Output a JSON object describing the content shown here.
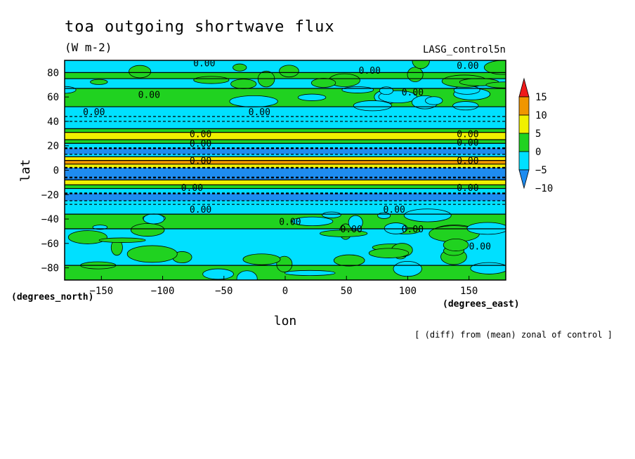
{
  "chart_data": {
    "type": "heatmap",
    "title": "toa outgoing shortwave flux",
    "subtitle": "(W m-2)",
    "dataset_label": "LASG_control5n",
    "xlabel": "lon",
    "ylabel": "lat",
    "x_unit_label": "(degrees_east)",
    "y_unit_label": "(degrees_north)",
    "footer": "[ (diff) from (mean) zonal of control ]",
    "xlim": [
      -180,
      180
    ],
    "ylim": [
      -90,
      90
    ],
    "x_ticks": [
      -150,
      -100,
      -50,
      0,
      50,
      100,
      150
    ],
    "y_ticks": [
      80,
      60,
      40,
      20,
      0,
      -20,
      -40,
      -60,
      -80
    ],
    "colorbar": {
      "levels": [
        -10,
        -5,
        0,
        5,
        10,
        15
      ],
      "labels": [
        "15",
        "10",
        "5",
        "0",
        "−5",
        "−10"
      ],
      "colors": [
        "#1e8cf0",
        "#00e0ff",
        "#20d220",
        "#f0f000",
        "#f09600",
        "#f01a1a"
      ]
    },
    "contour_label": "0.00",
    "lat_bands": [
      {
        "lat": [
          80,
          90
        ],
        "value": -3
      },
      {
        "lat": [
          75,
          80
        ],
        "value": 0
      },
      {
        "lat": [
          67,
          75
        ],
        "value": -2
      },
      {
        "lat": [
          52,
          67
        ],
        "value": 1
      },
      {
        "lat": [
          44,
          52
        ],
        "value": -2
      },
      {
        "lat": [
          40,
          44
        ],
        "value": -1
      },
      {
        "lat": [
          34,
          40
        ],
        "value": -3
      },
      {
        "lat": [
          31,
          34
        ],
        "value": 2
      },
      {
        "lat": [
          25,
          31
        ],
        "value": 7
      },
      {
        "lat": [
          22,
          25
        ],
        "value": 3
      },
      {
        "lat": [
          18,
          22
        ],
        "value": -3
      },
      {
        "lat": [
          13,
          18
        ],
        "value": -7
      },
      {
        "lat": [
          11,
          13
        ],
        "value": -3
      },
      {
        "lat": [
          8,
          11
        ],
        "value": 6
      },
      {
        "lat": [
          5,
          8
        ],
        "value": 12
      },
      {
        "lat": [
          2,
          5
        ],
        "value": 7
      },
      {
        "lat": [
          -6,
          2
        ],
        "value": -12
      },
      {
        "lat": [
          -8,
          -6
        ],
        "value": -6
      },
      {
        "lat": [
          -12,
          -8
        ],
        "value": 6
      },
      {
        "lat": [
          -15,
          -12
        ],
        "value": 2
      },
      {
        "lat": [
          -19,
          -15
        ],
        "value": -3
      },
      {
        "lat": [
          -25,
          -19
        ],
        "value": -7
      },
      {
        "lat": [
          -28,
          -25
        ],
        "value": -3
      },
      {
        "lat": [
          -36,
          -28
        ],
        "value": -2
      },
      {
        "lat": [
          -48,
          -36
        ],
        "value": 1
      },
      {
        "lat": [
          -78,
          -48
        ],
        "value": -2
      },
      {
        "lat": [
          -90,
          -78
        ],
        "value": 1
      }
    ]
  }
}
